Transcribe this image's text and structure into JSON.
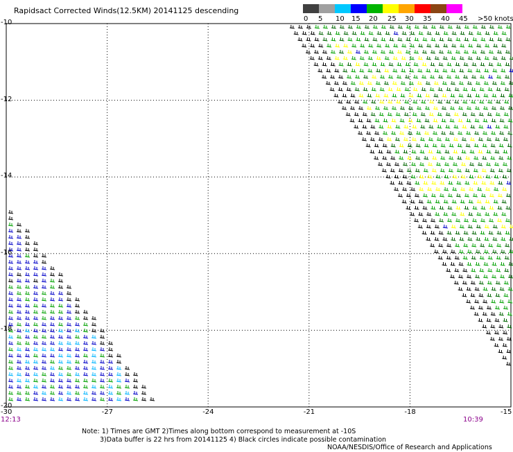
{
  "title": "Rapidsact Corrected Winds(12.5KM) 20141125 descending",
  "legend": {
    "bins": [
      {
        "label": "0",
        "color": "#404040"
      },
      {
        "label": "5",
        "color": "#a0a0a0"
      },
      {
        "label": "10",
        "color": "#00c8ff"
      },
      {
        "label": "15",
        "color": "#0000ff"
      },
      {
        "label": "20",
        "color": "#00b400"
      },
      {
        "label": "25",
        "color": "#ffff00"
      },
      {
        "label": "30",
        "color": "#ffa500"
      },
      {
        "label": "35",
        "color": "#ff0000"
      },
      {
        "label": "40",
        "color": "#8b4513"
      },
      {
        "label": "45",
        "color": "#ff00ff"
      },
      {
        "label": ">50 knots",
        "color": "#800080"
      }
    ]
  },
  "map": {
    "lon_range": [
      -30,
      -15
    ],
    "lat_range": [
      -20,
      -10
    ],
    "lon_ticks": [
      "-30",
      "-27",
      "-24",
      "-21",
      "-18",
      "-15"
    ],
    "lat_ticks": [
      "-10",
      "-12",
      "-14",
      "-16",
      "-18",
      "-20"
    ],
    "lon_tick_values": [
      -30,
      -27,
      -24,
      -21,
      -18,
      -15
    ],
    "lat_tick_values": [
      -10,
      -12,
      -14,
      -16,
      -18,
      -20
    ]
  },
  "times": {
    "left": "12:13",
    "right": "10:39"
  },
  "notes": {
    "line1": "Note: 1) Times are GMT 2)Times along bottom correspond to measurement at -10S",
    "line2": "3)Data buffer is 22 hrs from 20141125 4) Black circles indicate possible contamination",
    "line3": "NOAA/NESDIS/Office of Research and Applications"
  },
  "colors": {
    "wind_green": "#00a000",
    "wind_dark_green": "#006400",
    "wind_yellow": "#ffff00",
    "wind_blue": "#0000c8",
    "wind_lightblue": "#00b4ff",
    "wind_black": "#000000"
  }
}
